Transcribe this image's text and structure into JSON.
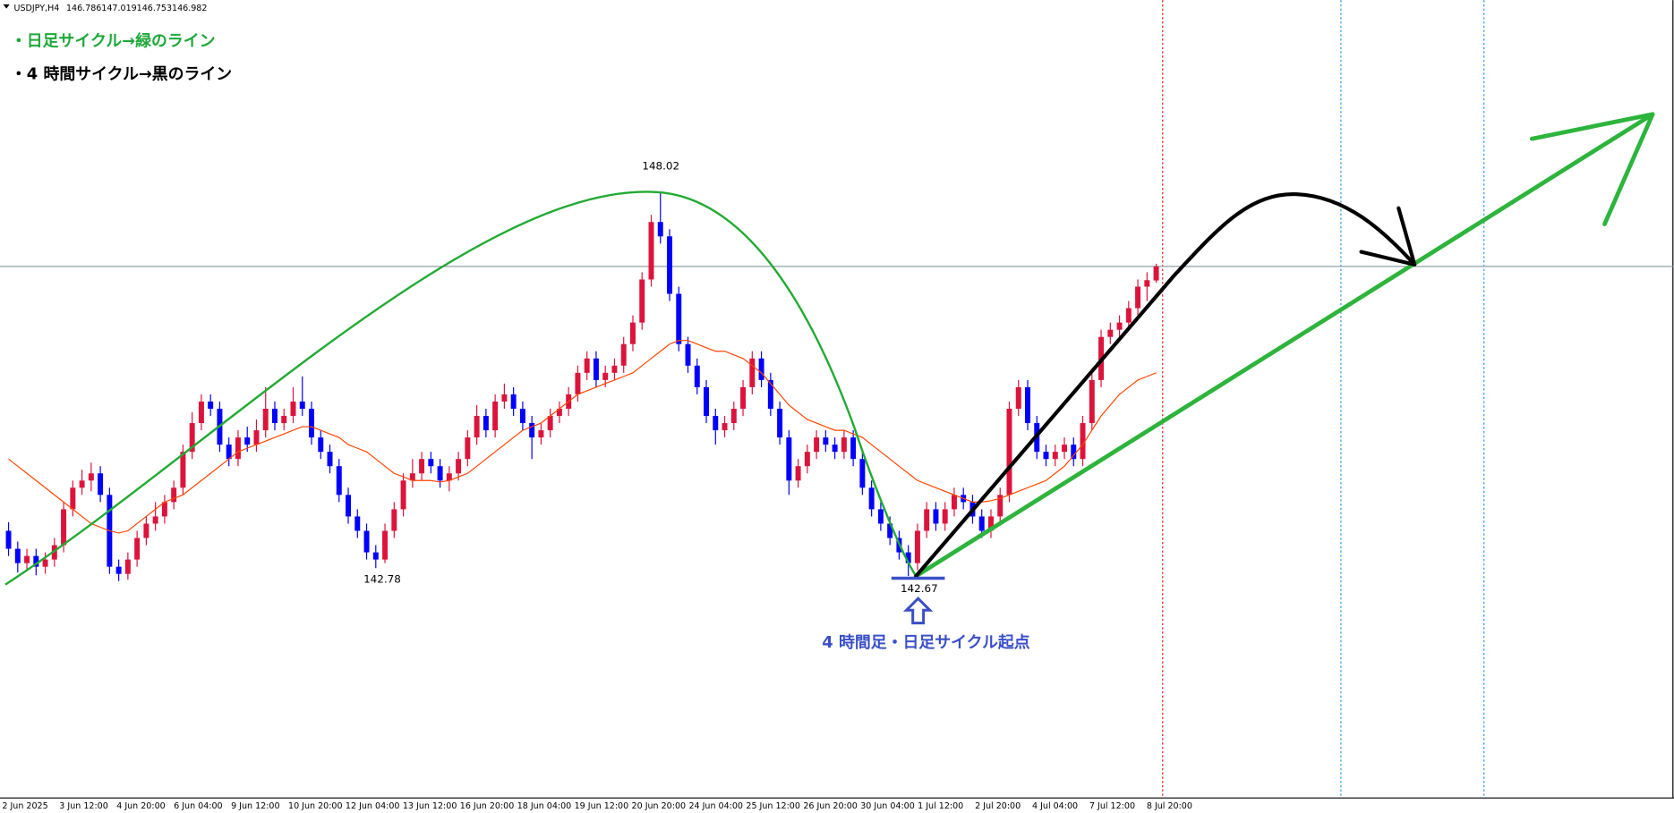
{
  "header": {
    "symbol": "USDJPY,H4"
  },
  "notes": [
    "・日足サイクル→緑のライン",
    "・4 時間サイクル→黒のライン"
  ],
  "chart_data": {
    "type": "candlestick",
    "ylim": [
      139.58,
      150.69
    ],
    "up_color": "#dc143c",
    "down_color": "#0000ff",
    "ma_color": "#ff4500",
    "annotation": "4 時間足・日足サイクル起点",
    "x_labels": [
      "2 Jun 2025",
      "3 Jun 12:00",
      "4 Jun 20:00",
      "6 Jun 04:00",
      "9 Jun 12:00",
      "10 Jun 20:00",
      "12 Jun 04:00",
      "13 Jun 12:00",
      "16 Jun 20:00",
      "18 Jun 04:00",
      "19 Jun 12:00",
      "20 Jun 20:00",
      "24 Jun 04:00",
      "25 Jun 12:00",
      "26 Jun 20:00",
      "30 Jun 04:00",
      "1 Jul 12:00",
      "2 Jul 20:00",
      "4 Jul 04:00",
      "7 Jul 12:00",
      "8 Jul 20:00"
    ],
    "candles": [
      [
        143.3,
        143.42,
        142.95,
        143.05
      ],
      [
        143.05,
        143.15,
        142.72,
        142.85
      ],
      [
        142.85,
        143.05,
        142.75,
        142.95
      ],
      [
        142.95,
        143.05,
        142.68,
        142.8
      ],
      [
        142.8,
        143.0,
        142.7,
        142.9
      ],
      [
        142.9,
        143.2,
        142.8,
        143.1
      ],
      [
        143.1,
        143.7,
        143.0,
        143.6
      ],
      [
        143.6,
        144.0,
        143.5,
        143.9
      ],
      [
        143.9,
        144.15,
        143.8,
        144.0
      ],
      [
        144.0,
        144.25,
        143.85,
        144.1
      ],
      [
        144.1,
        144.2,
        143.7,
        143.8
      ],
      [
        143.8,
        143.9,
        142.7,
        142.8
      ],
      [
        142.8,
        142.9,
        142.6,
        142.7
      ],
      [
        142.7,
        143.0,
        142.62,
        142.9
      ],
      [
        142.9,
        143.3,
        142.8,
        143.2
      ],
      [
        143.2,
        143.5,
        143.1,
        143.4
      ],
      [
        143.4,
        143.7,
        143.3,
        143.5
      ],
      [
        143.5,
        143.8,
        143.4,
        143.7
      ],
      [
        143.7,
        144.0,
        143.6,
        143.9
      ],
      [
        143.9,
        144.5,
        143.8,
        144.4
      ],
      [
        144.4,
        144.95,
        144.3,
        144.8
      ],
      [
        144.8,
        145.2,
        144.7,
        145.1
      ],
      [
        145.1,
        145.2,
        144.9,
        145.0
      ],
      [
        145.0,
        145.1,
        144.4,
        144.5
      ],
      [
        144.5,
        144.6,
        144.2,
        144.3
      ],
      [
        144.3,
        144.7,
        144.2,
        144.6
      ],
      [
        144.6,
        144.75,
        144.4,
        144.5
      ],
      [
        144.5,
        144.85,
        144.4,
        144.7
      ],
      [
        144.7,
        145.3,
        144.6,
        145.0
      ],
      [
        145.0,
        145.1,
        144.7,
        144.8
      ],
      [
        144.8,
        145.0,
        144.7,
        144.9
      ],
      [
        144.9,
        145.3,
        144.8,
        145.1
      ],
      [
        145.1,
        145.45,
        144.9,
        145.0
      ],
      [
        145.0,
        145.1,
        144.5,
        144.6
      ],
      [
        144.6,
        144.7,
        144.3,
        144.4
      ],
      [
        144.4,
        144.5,
        144.1,
        144.2
      ],
      [
        144.2,
        144.3,
        143.7,
        143.8
      ],
      [
        143.8,
        143.9,
        143.4,
        143.5
      ],
      [
        143.5,
        143.6,
        143.2,
        143.3
      ],
      [
        143.3,
        143.4,
        142.9,
        143.0
      ],
      [
        143.0,
        143.1,
        142.78,
        142.9
      ],
      [
        142.9,
        143.4,
        142.85,
        143.3
      ],
      [
        143.3,
        143.7,
        143.2,
        143.6
      ],
      [
        143.6,
        144.1,
        143.5,
        144.0
      ],
      [
        144.0,
        144.3,
        143.9,
        144.1
      ],
      [
        144.1,
        144.4,
        144.0,
        144.3
      ],
      [
        144.3,
        144.4,
        144.1,
        144.2
      ],
      [
        144.2,
        144.3,
        143.9,
        144.0
      ],
      [
        144.0,
        144.2,
        143.85,
        144.1
      ],
      [
        144.1,
        144.4,
        144.0,
        144.3
      ],
      [
        144.3,
        144.7,
        144.2,
        144.6
      ],
      [
        144.6,
        145.05,
        144.5,
        144.9
      ],
      [
        144.9,
        145.0,
        144.6,
        144.7
      ],
      [
        144.7,
        145.2,
        144.6,
        145.1
      ],
      [
        145.1,
        145.35,
        145.0,
        145.2
      ],
      [
        145.2,
        145.3,
        144.9,
        145.0
      ],
      [
        145.0,
        145.1,
        144.7,
        144.8
      ],
      [
        144.8,
        144.9,
        144.3,
        144.6
      ],
      [
        144.6,
        144.8,
        144.5,
        144.7
      ],
      [
        144.7,
        145.0,
        144.6,
        144.9
      ],
      [
        144.9,
        145.1,
        144.8,
        145.0
      ],
      [
        145.0,
        145.3,
        144.9,
        145.2
      ],
      [
        145.2,
        145.6,
        145.1,
        145.5
      ],
      [
        145.5,
        145.8,
        145.4,
        145.7
      ],
      [
        145.7,
        145.8,
        145.3,
        145.4
      ],
      [
        145.4,
        145.6,
        145.3,
        145.5
      ],
      [
        145.5,
        145.7,
        145.4,
        145.6
      ],
      [
        145.6,
        146.0,
        145.5,
        145.9
      ],
      [
        145.9,
        146.3,
        145.8,
        146.2
      ],
      [
        146.2,
        146.9,
        146.1,
        146.8
      ],
      [
        146.8,
        147.7,
        146.7,
        147.6
      ],
      [
        147.6,
        148.02,
        147.3,
        147.4
      ],
      [
        147.4,
        147.5,
        146.5,
        146.6
      ],
      [
        146.6,
        146.7,
        145.8,
        145.9
      ],
      [
        145.9,
        146.0,
        145.5,
        145.6
      ],
      [
        145.6,
        145.7,
        145.2,
        145.3
      ],
      [
        145.3,
        145.4,
        144.8,
        144.9
      ],
      [
        144.9,
        145.0,
        144.5,
        144.7
      ],
      [
        144.7,
        144.9,
        144.6,
        144.8
      ],
      [
        144.8,
        145.1,
        144.7,
        145.0
      ],
      [
        145.0,
        145.4,
        144.9,
        145.3
      ],
      [
        145.3,
        145.8,
        145.2,
        145.7
      ],
      [
        145.7,
        145.8,
        145.3,
        145.4
      ],
      [
        145.4,
        145.5,
        144.9,
        145.0
      ],
      [
        145.0,
        145.1,
        144.5,
        144.6
      ],
      [
        144.6,
        144.7,
        143.8,
        144.0
      ],
      [
        144.0,
        144.3,
        143.9,
        144.2
      ],
      [
        144.2,
        144.5,
        144.1,
        144.4
      ],
      [
        144.4,
        144.7,
        144.3,
        144.6
      ],
      [
        144.6,
        144.7,
        144.4,
        144.5
      ],
      [
        144.5,
        144.6,
        144.3,
        144.4
      ],
      [
        144.4,
        144.7,
        144.3,
        144.6
      ],
      [
        144.6,
        144.7,
        144.2,
        144.3
      ],
      [
        144.3,
        144.4,
        143.8,
        143.9
      ],
      [
        143.9,
        144.0,
        143.5,
        143.6
      ],
      [
        143.6,
        143.7,
        143.3,
        143.4
      ],
      [
        143.4,
        143.5,
        143.1,
        143.2
      ],
      [
        143.2,
        143.3,
        142.9,
        143.0
      ],
      [
        143.0,
        143.1,
        142.67,
        142.85
      ],
      [
        142.85,
        143.4,
        142.75,
        143.3
      ],
      [
        143.3,
        143.7,
        143.2,
        143.6
      ],
      [
        143.6,
        143.7,
        143.3,
        143.4
      ],
      [
        143.4,
        143.7,
        143.3,
        143.6
      ],
      [
        143.6,
        143.9,
        143.5,
        143.8
      ],
      [
        143.8,
        143.9,
        143.6,
        143.7
      ],
      [
        143.7,
        143.8,
        143.4,
        143.5
      ],
      [
        143.5,
        143.6,
        143.2,
        143.3
      ],
      [
        143.3,
        143.6,
        143.2,
        143.5
      ],
      [
        143.5,
        143.9,
        143.4,
        143.8
      ],
      [
        143.8,
        145.1,
        143.7,
        145.0
      ],
      [
        145.0,
        145.4,
        144.9,
        145.3
      ],
      [
        145.3,
        145.4,
        144.7,
        144.8
      ],
      [
        144.8,
        144.9,
        144.3,
        144.4
      ],
      [
        144.4,
        144.5,
        144.2,
        144.3
      ],
      [
        144.3,
        144.5,
        144.2,
        144.4
      ],
      [
        144.4,
        144.6,
        144.3,
        144.5
      ],
      [
        144.5,
        144.6,
        144.2,
        144.3
      ],
      [
        144.3,
        144.9,
        144.2,
        144.8
      ],
      [
        144.8,
        145.5,
        144.7,
        145.4
      ],
      [
        145.4,
        146.1,
        145.3,
        146.0
      ],
      [
        146.0,
        146.2,
        145.9,
        146.1
      ],
      [
        146.1,
        146.3,
        146.0,
        146.2
      ],
      [
        146.2,
        146.5,
        146.1,
        146.4
      ],
      [
        146.4,
        146.8,
        146.3,
        146.7
      ],
      [
        146.7,
        146.9,
        146.5,
        146.79
      ],
      [
        146.786,
        147.019,
        146.753,
        146.982
      ]
    ],
    "ma": [
      144.3,
      144.2,
      144.1,
      144.0,
      143.9,
      143.8,
      143.7,
      143.6,
      143.5,
      143.4,
      143.35,
      143.3,
      143.27,
      143.3,
      143.4,
      143.5,
      143.6,
      143.7,
      143.75,
      143.8,
      143.9,
      144.0,
      144.1,
      144.2,
      144.3,
      144.4,
      144.45,
      144.5,
      144.55,
      144.6,
      144.65,
      144.7,
      144.75,
      144.75,
      144.7,
      144.65,
      144.6,
      144.5,
      144.45,
      144.4,
      144.3,
      144.2,
      144.1,
      144.05,
      144.0,
      144.0,
      144.0,
      143.98,
      144.0,
      144.05,
      144.1,
      144.2,
      144.3,
      144.4,
      144.5,
      144.6,
      144.7,
      144.75,
      144.8,
      144.9,
      145.0,
      145.1,
      145.2,
      145.25,
      145.3,
      145.35,
      145.4,
      145.45,
      145.5,
      145.6,
      145.7,
      145.8,
      145.9,
      145.95,
      145.95,
      145.9,
      145.85,
      145.8,
      145.8,
      145.75,
      145.7,
      145.6,
      145.5,
      145.35,
      145.2,
      145.05,
      144.95,
      144.85,
      144.8,
      144.75,
      144.7,
      144.7,
      144.65,
      144.6,
      144.5,
      144.4,
      144.3,
      144.2,
      144.1,
      144.0,
      143.95,
      143.9,
      143.85,
      143.8,
      143.75,
      143.7,
      143.7,
      143.72,
      143.75,
      143.8,
      143.85,
      143.9,
      143.95,
      144.0,
      144.1,
      144.2,
      144.35,
      144.5,
      144.7,
      144.9,
      145.05,
      145.2,
      145.3,
      145.4,
      145.45,
      145.5
    ]
  }
}
